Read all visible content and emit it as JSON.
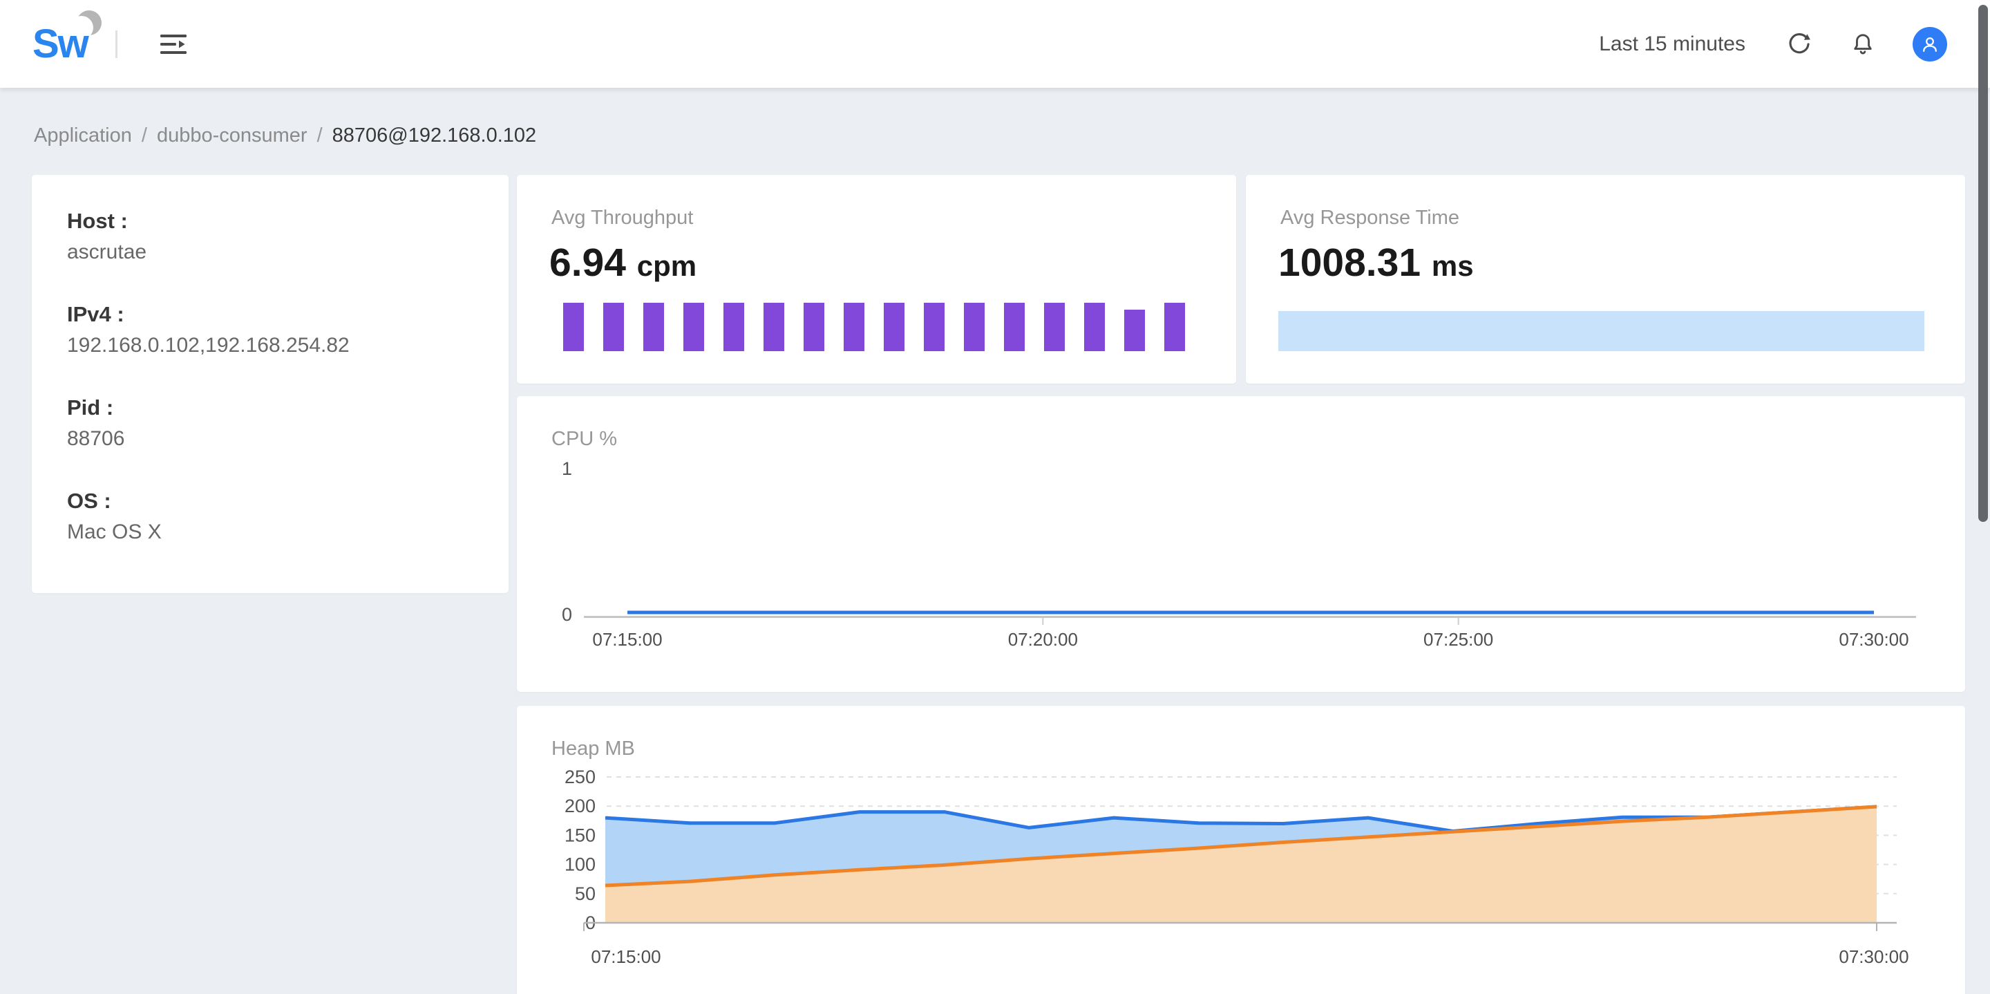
{
  "header": {
    "logo_text": "Sw",
    "time_range": "Last 15 minutes"
  },
  "breadcrumb": {
    "separator": "/",
    "items": [
      "Application",
      "dubbo-consumer",
      "88706@192.168.0.102"
    ]
  },
  "instance_info": {
    "rows": [
      {
        "label": "Host :",
        "value": "ascrutae"
      },
      {
        "label": "IPv4 :",
        "value": "192.168.0.102,192.168.254.82"
      },
      {
        "label": "Pid :",
        "value": "88706"
      },
      {
        "label": "OS :",
        "value": "Mac OS X"
      }
    ]
  },
  "metrics": {
    "throughput": {
      "title": "Avg Throughput",
      "value": "6.94",
      "unit": "cpm"
    },
    "response_time": {
      "title": "Avg Response Time",
      "value": "1008.31",
      "unit": "ms"
    }
  },
  "colors": {
    "logo_blue": "#2a85ee",
    "avatar_bg": "#2e7cf6",
    "purple": "#8148d9",
    "response_bar_blue": "#c8e2fb",
    "line_blue": "#2b77e3",
    "blue_fill": "#b1d4f7",
    "line_orange": "#ef8326",
    "orange_fill": "#f9d9b4",
    "page_bg": "#ebeef2"
  },
  "chart_data": [
    {
      "id": "throughput-mini",
      "type": "bar",
      "title": "Avg Throughput",
      "unit": "cpm",
      "average": 6.94,
      "values": [
        7,
        7,
        7,
        7,
        7,
        7,
        7,
        7,
        7,
        7,
        7,
        7,
        7,
        7,
        6,
        7
      ],
      "color": "#8148d9"
    },
    {
      "id": "response-mini",
      "type": "area",
      "title": "Avg Response Time",
      "unit": "ms",
      "average": 1008.31,
      "flat_series": true,
      "color": "#c8e2fb"
    },
    {
      "id": "cpu",
      "type": "line",
      "title": "CPU %",
      "x_ticks": [
        "07:15:00",
        "07:20:00",
        "07:25:00",
        "07:30:00"
      ],
      "y_ticks": [
        1,
        0
      ],
      "ylim": [
        0,
        1
      ],
      "values": [
        0,
        0,
        0,
        0,
        0,
        0,
        0,
        0,
        0,
        0,
        0,
        0,
        0,
        0,
        0,
        0
      ],
      "color": "#2b77e3",
      "grid": false
    },
    {
      "id": "heap",
      "type": "area",
      "title": "Heap MB",
      "x_ticks": [
        "07:15:00",
        "07:30:00"
      ],
      "y_ticks": [
        250,
        200,
        150,
        100,
        50,
        0
      ],
      "ylim": [
        0,
        250
      ],
      "grid": "dashed",
      "series": [
        {
          "name": "blue",
          "color": "#2b77e3",
          "fill": "#b1d4f7",
          "values": [
            180,
            171,
            171,
            190,
            190,
            163,
            180,
            171,
            170,
            180,
            157,
            170,
            181,
            181,
            190,
            199
          ]
        },
        {
          "name": "orange",
          "color": "#ef8326",
          "fill": "#f9d9b4",
          "values": [
            64,
            71,
            82,
            91,
            99,
            110,
            119,
            128,
            138,
            147,
            156,
            165,
            174,
            181,
            190,
            199
          ]
        }
      ]
    }
  ]
}
